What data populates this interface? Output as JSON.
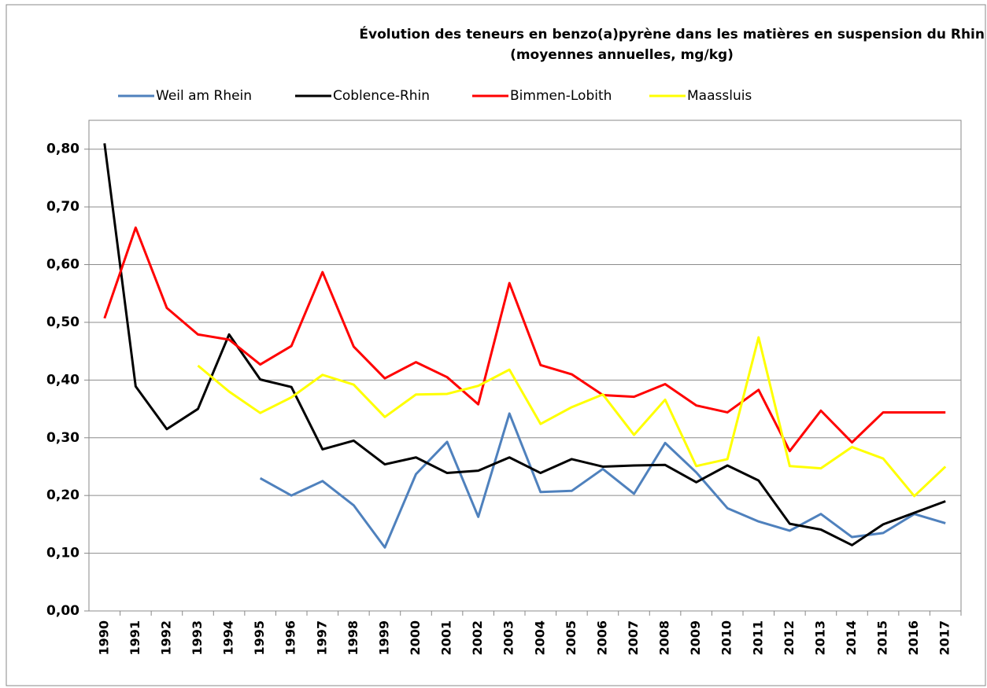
{
  "chart_data": {
    "type": "line",
    "title": "Évolution des teneurs en benzo(a)pyrène dans les matières en suspension du Rhin",
    "subtitle": "(moyennes annuelles, mg/kg)",
    "categories": [
      "1990",
      "1991",
      "1992",
      "1993",
      "1994",
      "1995",
      "1996",
      "1997",
      "1998",
      "1999",
      "2000",
      "2001",
      "2002",
      "2003",
      "2004",
      "2005",
      "2006",
      "2007",
      "2008",
      "2009",
      "2010",
      "2011",
      "2012",
      "2013",
      "2014",
      "2015",
      "2016",
      "2017"
    ],
    "series": [
      {
        "name": "Weil am Rhein",
        "color": "#4f81bd",
        "values": [
          null,
          null,
          null,
          null,
          null,
          0.23,
          0.2,
          0.225,
          0.183,
          0.11,
          0.237,
          0.293,
          0.163,
          0.342,
          0.206,
          0.208,
          0.246,
          0.203,
          0.291,
          0.24,
          0.178,
          0.155,
          0.139,
          0.168,
          0.128,
          0.135,
          0.168,
          0.152
        ]
      },
      {
        "name": "Coblence-Rhin",
        "color": "#000000",
        "values": [
          0.81,
          0.389,
          0.315,
          0.35,
          0.479,
          0.401,
          0.388,
          0.28,
          0.295,
          0.254,
          0.266,
          0.239,
          0.243,
          0.266,
          0.239,
          0.263,
          0.25,
          0.252,
          0.253,
          0.223,
          0.252,
          0.226,
          0.151,
          0.141,
          0.114,
          0.15,
          0.17,
          0.19
        ]
      },
      {
        "name": "Bimmen-Lobith",
        "color": "#ff0000",
        "values": [
          0.507,
          0.664,
          0.525,
          0.479,
          0.47,
          0.427,
          0.459,
          0.587,
          0.458,
          0.403,
          0.431,
          0.405,
          0.358,
          0.568,
          0.426,
          0.41,
          0.374,
          0.371,
          0.393,
          0.356,
          0.344,
          0.383,
          0.277,
          0.347,
          0.292,
          0.344,
          0.344,
          0.344
        ]
      },
      {
        "name": "Maassluis",
        "color": "#ffff00",
        "values": [
          null,
          null,
          null,
          0.425,
          0.38,
          0.343,
          0.37,
          0.409,
          0.392,
          0.336,
          0.375,
          0.376,
          0.39,
          0.418,
          0.324,
          0.353,
          0.375,
          0.305,
          0.366,
          0.251,
          0.263,
          0.474,
          0.251,
          0.247,
          0.284,
          0.264,
          0.199,
          0.25
        ]
      }
    ],
    "ylim": [
      0,
      0.85
    ],
    "yticks": [
      {
        "value": 0,
        "label": "0,00"
      },
      {
        "value": 0.1,
        "label": "0,10"
      },
      {
        "value": 0.2,
        "label": "0,20"
      },
      {
        "value": 0.3,
        "label": "0,30"
      },
      {
        "value": 0.4,
        "label": "0,40"
      },
      {
        "value": 0.5,
        "label": "0,50"
      },
      {
        "value": 0.6,
        "label": "0,60"
      },
      {
        "value": 0.7,
        "label": "0,70"
      },
      {
        "value": 0.8,
        "label": "0,80"
      }
    ],
    "grid": true,
    "legend": "top"
  }
}
